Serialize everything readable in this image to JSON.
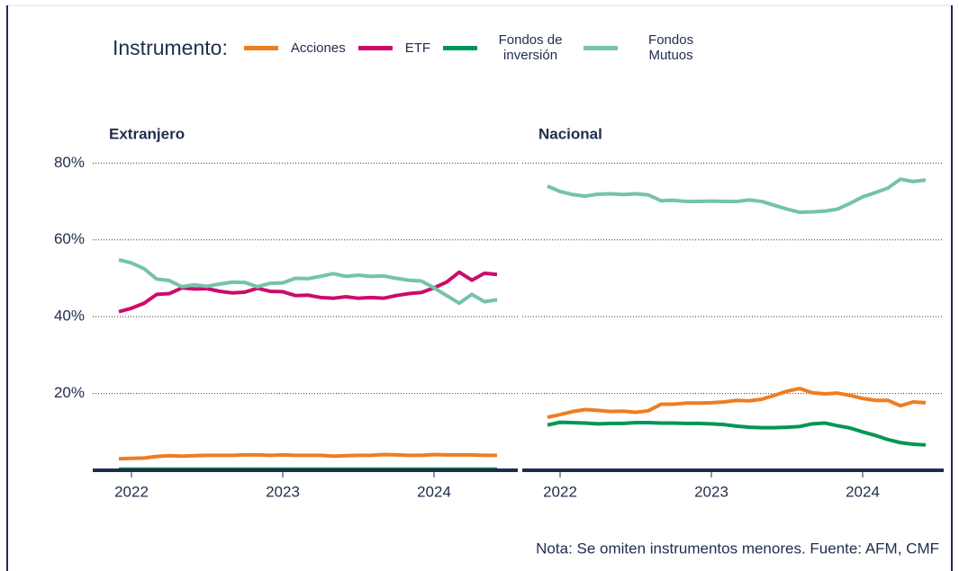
{
  "legend_title": "Instrumento:",
  "note": "Nota: Se omiten instrumentos menores. Fuente: AFM, CMF",
  "chart_data": [
    {
      "type": "line",
      "title": "Extranjero",
      "x": [
        "2021-12",
        "2022-01",
        "2022-02",
        "2022-03",
        "2022-04",
        "2022-05",
        "2022-06",
        "2022-07",
        "2022-08",
        "2022-09",
        "2022-10",
        "2022-11",
        "2022-12",
        "2023-01",
        "2023-02",
        "2023-03",
        "2023-04",
        "2023-05",
        "2023-06",
        "2023-07",
        "2023-08",
        "2023-09",
        "2023-10",
        "2023-11",
        "2023-12",
        "2024-01",
        "2024-02",
        "2024-03",
        "2024-04",
        "2024-05",
        "2024-06"
      ],
      "xticks": [
        {
          "value": "2022-01",
          "label": "2022"
        },
        {
          "value": "2023-01",
          "label": "2023"
        },
        {
          "value": "2024-01",
          "label": "2024"
        }
      ],
      "ylim": [
        0,
        85
      ],
      "yticks": [
        {
          "value": 20,
          "label": "20%"
        },
        {
          "value": 40,
          "label": "40%"
        },
        {
          "value": 60,
          "label": "60%"
        },
        {
          "value": 80,
          "label": "80%"
        }
      ],
      "grid": true,
      "series": [
        {
          "name": "Acciones",
          "color": "#ee7d22",
          "values": [
            3.0,
            3.1,
            3.2,
            3.6,
            3.8,
            3.7,
            3.8,
            3.9,
            3.9,
            3.9,
            4.0,
            4.0,
            3.9,
            4.0,
            3.9,
            3.9,
            3.9,
            3.7,
            3.8,
            3.9,
            3.9,
            4.1,
            4.0,
            3.9,
            3.9,
            4.1,
            4.0,
            4.0,
            4.0,
            3.9,
            3.9
          ]
        },
        {
          "name": "ETF",
          "color": "#cc0c6a",
          "values": [
            41.3,
            42.2,
            43.5,
            45.8,
            46.0,
            47.5,
            47.2,
            47.3,
            46.6,
            46.2,
            46.4,
            47.4,
            46.6,
            46.5,
            45.5,
            45.6,
            45.0,
            44.8,
            45.2,
            44.8,
            45.0,
            44.8,
            45.5,
            46.0,
            46.3,
            47.5,
            49.0,
            51.6,
            49.5,
            51.3,
            51.0
          ]
        },
        {
          "name": "Fondos de inversión",
          "color": "#009658",
          "values": [
            0.3,
            0.3,
            0.3,
            0.3,
            0.3,
            0.3,
            0.3,
            0.3,
            0.3,
            0.3,
            0.3,
            0.3,
            0.3,
            0.3,
            0.3,
            0.3,
            0.3,
            0.3,
            0.3,
            0.3,
            0.3,
            0.3,
            0.3,
            0.3,
            0.3,
            0.3,
            0.3,
            0.3,
            0.3,
            0.3,
            0.3
          ]
        },
        {
          "name": "Fondos Mutuos",
          "color": "#74c2b0",
          "values": [
            54.8,
            54.0,
            52.5,
            49.8,
            49.4,
            47.8,
            48.3,
            47.9,
            48.5,
            49.0,
            48.9,
            47.8,
            48.7,
            48.8,
            50.0,
            49.9,
            50.5,
            51.2,
            50.5,
            50.8,
            50.5,
            50.6,
            50.0,
            49.5,
            49.3,
            47.5,
            45.5,
            43.5,
            45.8,
            43.9,
            44.4
          ]
        }
      ]
    },
    {
      "type": "line",
      "title": "Nacional",
      "x": [
        "2021-12",
        "2022-01",
        "2022-02",
        "2022-03",
        "2022-04",
        "2022-05",
        "2022-06",
        "2022-07",
        "2022-08",
        "2022-09",
        "2022-10",
        "2022-11",
        "2022-12",
        "2023-01",
        "2023-02",
        "2023-03",
        "2023-04",
        "2023-05",
        "2023-06",
        "2023-07",
        "2023-08",
        "2023-09",
        "2023-10",
        "2023-11",
        "2023-12",
        "2024-01",
        "2024-02",
        "2024-03",
        "2024-04",
        "2024-05",
        "2024-06"
      ],
      "xticks": [
        {
          "value": "2022-01",
          "label": "2022"
        },
        {
          "value": "2023-01",
          "label": "2023"
        },
        {
          "value": "2024-01",
          "label": "2024"
        }
      ],
      "ylim": [
        0,
        85
      ],
      "yticks": [
        20,
        40,
        60,
        80
      ],
      "grid": true,
      "series": [
        {
          "color": "#ee7d22",
          "values": [
            13.8,
            14.5,
            15.3,
            15.8,
            15.6,
            15.3,
            15.4,
            15.1,
            15.5,
            17.2,
            17.2,
            17.5,
            17.5,
            17.6,
            17.8,
            18.2,
            18.1,
            18.5,
            19.5,
            20.6,
            21.3,
            20.2,
            19.9,
            20.1,
            19.5,
            18.7,
            18.2,
            18.2,
            16.8,
            17.8,
            17.6
          ]
        },
        {
          "color": "#cc0c6a",
          "values": [
            null,
            null,
            null,
            null,
            null,
            null,
            null,
            null,
            null,
            null,
            null,
            null,
            null,
            null,
            null,
            null,
            null,
            null,
            null,
            null,
            null,
            null,
            null,
            null,
            null,
            null,
            null,
            null,
            null,
            null,
            null
          ]
        },
        {
          "color": "#009658",
          "values": [
            11.8,
            12.5,
            12.4,
            12.3,
            12.1,
            12.2,
            12.2,
            12.4,
            12.4,
            12.3,
            12.3,
            12.2,
            12.2,
            12.1,
            11.9,
            11.5,
            11.2,
            11.1,
            11.1,
            11.2,
            11.4,
            12.1,
            12.3,
            11.6,
            11.0,
            10.0,
            9.1,
            8.0,
            7.2,
            6.8,
            6.6
          ]
        },
        {
          "color": "#74c2b0",
          "values": [
            74.0,
            72.6,
            71.8,
            71.4,
            71.9,
            72.0,
            71.8,
            72.0,
            71.7,
            70.2,
            70.3,
            70.0,
            70.0,
            70.1,
            70.0,
            70.0,
            70.4,
            70.0,
            69.0,
            68.0,
            67.2,
            67.3,
            67.5,
            68.0,
            69.5,
            71.2,
            72.3,
            73.5,
            75.8,
            75.2,
            75.6
          ]
        }
      ]
    }
  ]
}
